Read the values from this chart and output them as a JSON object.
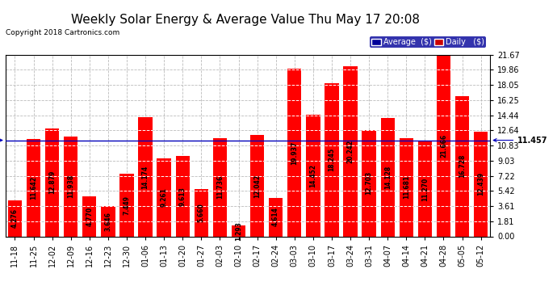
{
  "title": "Weekly Solar Energy & Average Value Thu May 17 20:08",
  "copyright": "Copyright 2018 Cartronics.com",
  "categories": [
    "11-18",
    "11-25",
    "12-02",
    "12-09",
    "12-16",
    "12-23",
    "12-30",
    "01-06",
    "01-13",
    "01-20",
    "01-27",
    "02-03",
    "02-10",
    "02-17",
    "02-24",
    "03-03",
    "03-10",
    "03-17",
    "03-24",
    "03-31",
    "04-07",
    "04-14",
    "04-21",
    "04-28",
    "05-05",
    "05-12"
  ],
  "values": [
    4.276,
    11.642,
    12.879,
    11.938,
    4.77,
    3.646,
    7.449,
    14.174,
    9.261,
    9.613,
    5.66,
    11.736,
    1.293,
    12.042,
    4.614,
    19.937,
    14.452,
    18.245,
    20.242,
    12.703,
    14.128,
    11.681,
    11.27,
    21.666,
    16.728,
    12.439
  ],
  "average": 11.457,
  "ylim": [
    0,
    21.67
  ],
  "yticks": [
    0.0,
    1.81,
    3.61,
    5.42,
    7.22,
    9.03,
    10.83,
    12.64,
    14.44,
    16.25,
    18.05,
    19.86,
    21.67
  ],
  "bar_color": "#FF0000",
  "avg_line_color": "#0000BB",
  "background_color": "#FFFFFF",
  "grid_color": "#BBBBBB",
  "title_fontsize": 11,
  "tick_fontsize": 7,
  "value_fontsize": 5.5,
  "avg_label": "11.457",
  "legend_bg_color": "#000099",
  "legend_daily_color": "#CC0000",
  "legend_avg_text": "Average  ($)",
  "legend_daily_text": "Daily   ($)"
}
